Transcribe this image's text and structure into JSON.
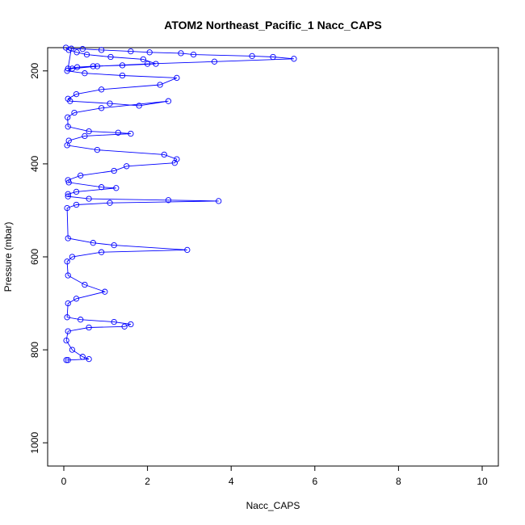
{
  "chart_data": {
    "type": "scatter",
    "title": "ATOM2 Northeast_Pacific_1 Nacc_CAPS",
    "xlabel": "Nacc_CAPS",
    "ylabel": "Pressure (mbar)",
    "xlim": [
      0,
      10
    ],
    "ylim": [
      1050,
      150
    ],
    "y_reversed": true,
    "x_ticks": [
      0,
      2,
      4,
      6,
      8,
      10
    ],
    "y_ticks": [
      200,
      400,
      600,
      800,
      1000
    ],
    "grid": false,
    "legend": "none",
    "style": "points connected by lines (open circles)",
    "series_color": "#0000ff",
    "series": [
      {
        "x": [
          0.05,
          0.12,
          0.31,
          0.55,
          1.12,
          1.9,
          2.2,
          1.4,
          0.7,
          0.32,
          0.1,
          0.18,
          0.45,
          0.9,
          1.6,
          2.05,
          2.8,
          3.1,
          4.5,
          5.0,
          5.5,
          3.6,
          2.0,
          0.8,
          0.2,
          0.08,
          0.5,
          1.4,
          2.7,
          2.3,
          0.9,
          0.3,
          0.1,
          0.15,
          1.1,
          1.8,
          2.5,
          0.9,
          0.25,
          0.09,
          0.1,
          0.6,
          1.3,
          1.6,
          0.5,
          0.12,
          0.08,
          0.8,
          2.4,
          2.7,
          2.65,
          1.5,
          1.2,
          0.4,
          0.1,
          0.12,
          0.9,
          1.25,
          0.3,
          0.1,
          0.1,
          0.6,
          2.5,
          3.7,
          1.1,
          0.3,
          0.08,
          0.1,
          0.7,
          1.2,
          2.95,
          0.9,
          0.2,
          0.08,
          0.1,
          0.5,
          0.98,
          0.3,
          0.1,
          0.08,
          0.4,
          1.2,
          1.6,
          1.45,
          0.6,
          0.1,
          0.06,
          0.2,
          0.45,
          0.6,
          0.1,
          0.06
        ],
        "y": [
          150,
          155,
          160,
          165,
          170,
          175,
          185,
          188,
          190,
          192,
          195,
          152,
          153,
          155,
          158,
          160,
          162,
          165,
          168,
          170,
          174,
          180,
          185,
          190,
          195,
          200,
          205,
          210,
          215,
          230,
          240,
          250,
          260,
          265,
          270,
          275,
          265,
          280,
          290,
          300,
          320,
          330,
          333,
          335,
          340,
          350,
          360,
          370,
          380,
          390,
          398,
          405,
          415,
          425,
          435,
          440,
          450,
          452,
          460,
          465,
          470,
          475,
          478,
          480,
          484,
          488,
          495,
          560,
          570,
          575,
          585,
          590,
          600,
          610,
          640,
          660,
          675,
          690,
          700,
          730,
          735,
          740,
          745,
          750,
          752,
          760,
          780,
          800,
          815,
          820,
          822,
          822
        ]
      }
    ]
  }
}
